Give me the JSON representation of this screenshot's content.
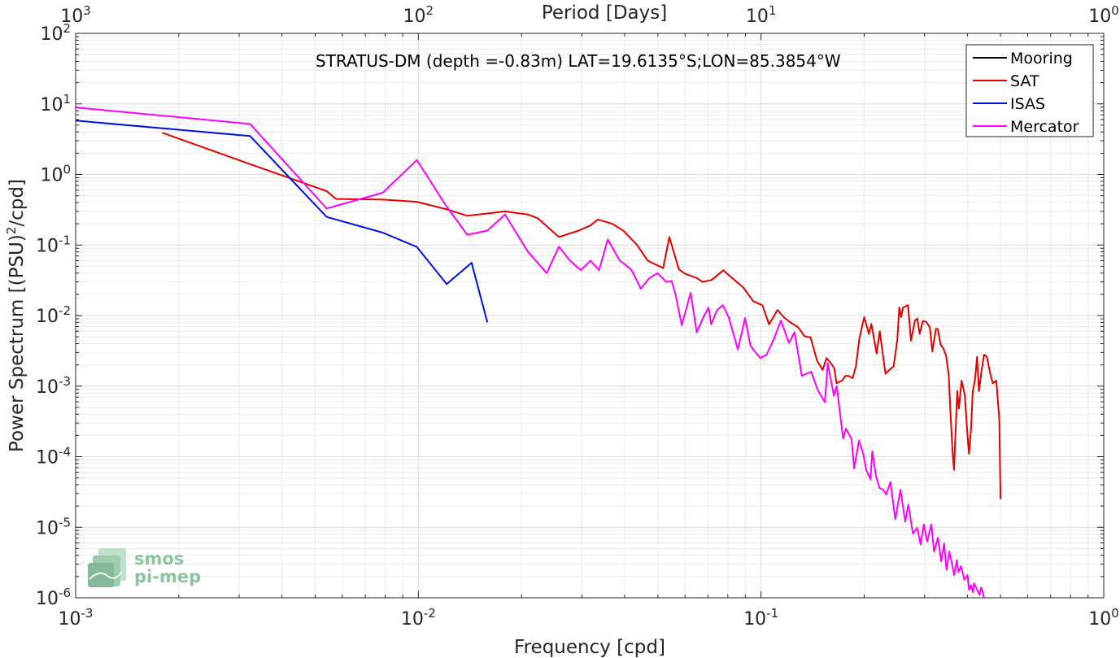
{
  "chart_data": {
    "type": "line",
    "title": "",
    "annotation": "STRATUS-DM (depth =-0.83m) LAT=19.6135°S;LON=85.3854°W",
    "xlabel": "Frequency [cpd]",
    "ylabel": "Power Spectrum [(PSU)",
    "ylabel_sup": "2",
    "ylabel_end": "/cpd]",
    "x2label": "Period [Days]",
    "xscale": "log",
    "yscale": "log",
    "xlim": [
      0.001,
      1
    ],
    "ylim": [
      1e-06,
      100
    ],
    "grid": true,
    "legend_position": "top-right",
    "x_ticks": [
      {
        "value": 0.001,
        "base": "10",
        "exp": "-3"
      },
      {
        "value": 0.01,
        "base": "10",
        "exp": "-2"
      },
      {
        "value": 0.1,
        "base": "10",
        "exp": "-1"
      },
      {
        "value": 1,
        "base": "10",
        "exp": "0"
      }
    ],
    "x2_ticks": [
      {
        "value": 0.001,
        "base": "10",
        "exp": "3"
      },
      {
        "value": 0.01,
        "base": "10",
        "exp": "2"
      },
      {
        "value": 0.1,
        "base": "10",
        "exp": "1"
      },
      {
        "value": 1,
        "base": "10",
        "exp": "0"
      }
    ],
    "y_ticks": [
      {
        "value": 100,
        "base": "10",
        "exp": "2"
      },
      {
        "value": 10,
        "base": "10",
        "exp": "1"
      },
      {
        "value": 1,
        "base": "10",
        "exp": "0"
      },
      {
        "value": 0.1,
        "base": "10",
        "exp": "-1"
      },
      {
        "value": 0.01,
        "base": "10",
        "exp": "-2"
      },
      {
        "value": 0.001,
        "base": "10",
        "exp": "-3"
      },
      {
        "value": 0.0001,
        "base": "10",
        "exp": "-4"
      },
      {
        "value": 1e-05,
        "base": "10",
        "exp": "-5"
      },
      {
        "value": 1e-06,
        "base": "10",
        "exp": "-6"
      }
    ],
    "series": [
      {
        "name": "Mooring",
        "color": "#000000",
        "x": [],
        "y": []
      },
      {
        "name": "SAT",
        "color": "#e60000",
        "x": [
          0.00179,
          0.00323,
          0.0054,
          0.00575,
          0.00787,
          0.0099,
          0.0121,
          0.0139,
          0.0159,
          0.0179,
          0.0209,
          0.0223,
          0.0257,
          0.0294,
          0.0318,
          0.0334,
          0.0368,
          0.0396,
          0.0435,
          0.0467,
          0.0518,
          0.054,
          0.0576,
          0.0601,
          0.0651,
          0.0674,
          0.0718,
          0.0776,
          0.0807,
          0.0864,
          0.0888,
          0.0949,
          0.1009,
          0.1055,
          0.1117,
          0.1164,
          0.121,
          0.1284,
          0.134,
          0.1395,
          0.1457,
          0.1513,
          0.1553,
          0.1599,
          0.1636,
          0.1661,
          0.1724,
          0.1764,
          0.1798,
          0.1851,
          0.1892,
          0.1937,
          0.2,
          0.2064,
          0.2099,
          0.2174,
          0.222,
          0.2307,
          0.2368,
          0.2436,
          0.2498,
          0.2531,
          0.2562,
          0.2597,
          0.2685,
          0.2738,
          0.2813,
          0.2859,
          0.2903,
          0.2965,
          0.3031,
          0.3109,
          0.3161,
          0.3239,
          0.3279,
          0.3342,
          0.3405,
          0.3467,
          0.3531,
          0.3566,
          0.362,
          0.3656,
          0.3737,
          0.3778,
          0.3846,
          0.3932,
          0.399,
          0.4044,
          0.4101,
          0.4147,
          0.4217,
          0.4269,
          0.4325,
          0.4397,
          0.4477,
          0.4559,
          0.4665,
          0.4745,
          0.4858,
          0.4957,
          0.4998
        ],
        "y": [
          3.9,
          1.4,
          0.58,
          0.45,
          0.44,
          0.41,
          0.32,
          0.26,
          0.28,
          0.3,
          0.27,
          0.24,
          0.13,
          0.16,
          0.19,
          0.23,
          0.2,
          0.16,
          0.1,
          0.06,
          0.047,
          0.13,
          0.045,
          0.039,
          0.034,
          0.03,
          0.032,
          0.044,
          0.037,
          0.028,
          0.025,
          0.016,
          0.014,
          0.0075,
          0.012,
          0.0095,
          0.0082,
          0.0068,
          0.0051,
          0.0049,
          0.0023,
          0.0017,
          0.0025,
          0.0021,
          0.0018,
          0.0011,
          0.0012,
          0.0014,
          0.0014,
          0.0013,
          0.0019,
          0.0048,
          0.0095,
          0.0055,
          0.0076,
          0.0029,
          0.006,
          0.0015,
          0.0017,
          0.0019,
          0.0045,
          0.013,
          0.0095,
          0.013,
          0.014,
          0.0044,
          0.0085,
          0.0091,
          0.0055,
          0.0083,
          0.0082,
          0.0068,
          0.0031,
          0.0065,
          0.0065,
          0.0039,
          0.0034,
          0.0027,
          0.0014,
          0.00048,
          0.00012,
          6.5e-05,
          0.00085,
          0.00048,
          0.0012,
          0.00075,
          0.00025,
          0.00011,
          0.00025,
          0.00083,
          0.0013,
          0.0026,
          0.00085,
          0.0016,
          0.0028,
          0.0026,
          0.0015,
          0.0011,
          0.0012,
          0.00034,
          2.5e-05
        ]
      },
      {
        "name": "ISAS",
        "color": "#0010e0",
        "x": [
          0.001,
          0.00323,
          0.0054,
          0.00787,
          0.0099,
          0.0121,
          0.0143,
          0.0159
        ],
        "y": [
          5.8,
          3.5,
          0.25,
          0.15,
          0.094,
          0.028,
          0.056,
          0.008
        ]
      },
      {
        "name": "Mercator",
        "color": "#ff00ff",
        "x": [
          0.001,
          0.00323,
          0.0054,
          0.00787,
          0.0099,
          0.0121,
          0.0139,
          0.0159,
          0.0179,
          0.0209,
          0.0237,
          0.0257,
          0.0277,
          0.0298,
          0.0318,
          0.0337,
          0.0357,
          0.0387,
          0.0418,
          0.0446,
          0.0472,
          0.0499,
          0.0529,
          0.0548,
          0.0563,
          0.0587,
          0.0623,
          0.0649,
          0.0679,
          0.0703,
          0.0715,
          0.0744,
          0.0774,
          0.0805,
          0.0856,
          0.0898,
          0.0932,
          0.0995,
          0.1038,
          0.1091,
          0.1143,
          0.1206,
          0.1253,
          0.1315,
          0.1401,
          0.1462,
          0.1536,
          0.1565,
          0.1632,
          0.1663,
          0.1736,
          0.1769,
          0.1837,
          0.1869,
          0.1931,
          0.1987,
          0.203,
          0.2087,
          0.2111,
          0.2166,
          0.2219,
          0.2271,
          0.2319,
          0.2386,
          0.2464,
          0.2551,
          0.2635,
          0.2689,
          0.2775,
          0.2855,
          0.2921,
          0.2985,
          0.3052,
          0.3141,
          0.3198,
          0.3281,
          0.3356,
          0.3421,
          0.3478,
          0.3544,
          0.3603,
          0.3661,
          0.3727,
          0.3769,
          0.3829,
          0.3924,
          0.4003,
          0.4045,
          0.4097,
          0.4155,
          0.4184,
          0.4273,
          0.4339,
          0.4387,
          0.4436,
          0.4476
        ],
        "y": [
          8.9,
          5.2,
          0.33,
          0.55,
          1.6,
          0.35,
          0.14,
          0.16,
          0.27,
          0.08,
          0.04,
          0.095,
          0.06,
          0.044,
          0.06,
          0.044,
          0.12,
          0.06,
          0.045,
          0.024,
          0.034,
          0.04,
          0.03,
          0.031,
          0.02,
          0.0073,
          0.021,
          0.0058,
          0.0095,
          0.013,
          0.0075,
          0.012,
          0.014,
          0.0094,
          0.0033,
          0.0092,
          0.0037,
          0.0025,
          0.0028,
          0.0047,
          0.0085,
          0.0041,
          0.0058,
          0.0014,
          0.0016,
          0.00089,
          0.00059,
          0.0021,
          0.00073,
          0.001,
          0.00018,
          0.00025,
          0.00018,
          6.8e-05,
          0.00017,
          0.00011,
          6.4e-05,
          4.8e-05,
          0.00012,
          5.2e-05,
          3.6e-05,
          3.4e-05,
          2.9e-05,
          4.4e-05,
          1.3e-05,
          3.4e-05,
          1.2e-05,
          2.1e-05,
          8.1e-06,
          9.8e-06,
          5.7e-06,
          1.1e-05,
          6.3e-06,
          1.1e-05,
          4.5e-06,
          7.1e-06,
          3.3e-06,
          5.9e-06,
          2.5e-06,
          4.5e-06,
          3.1e-06,
          2.1e-06,
          3.4e-06,
          2.3e-06,
          2.8e-06,
          1.8e-06,
          2.1e-06,
          1.3e-06,
          1.5e-06,
          1.2e-06,
          1.6e-06,
          1.3e-06,
          1.1e-06,
          1.4e-06,
          1.2e-06,
          1e-06
        ]
      }
    ]
  },
  "logo": {
    "line1": "smos",
    "line2": "pi-mep"
  }
}
